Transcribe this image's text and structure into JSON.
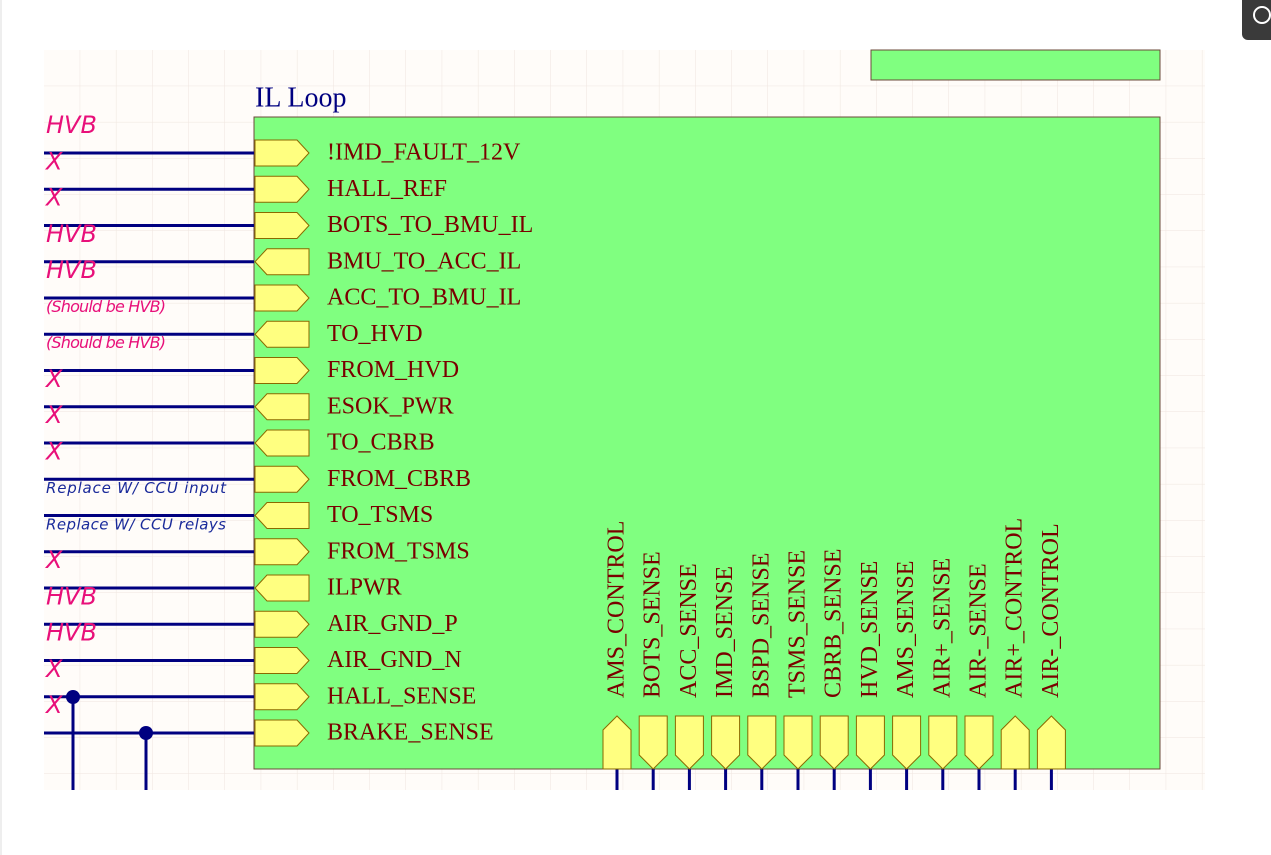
{
  "sheet": {
    "title": "IL Loop",
    "left_ports": [
      {
        "label": "!IMD_FAULT_12V",
        "direction": "right"
      },
      {
        "label": "HALL_REF",
        "direction": "right"
      },
      {
        "label": "BOTS_TO_BMU_IL",
        "direction": "right"
      },
      {
        "label": "BMU_TO_ACC_IL",
        "direction": "left"
      },
      {
        "label": "ACC_TO_BMU_IL",
        "direction": "right"
      },
      {
        "label": "TO_HVD",
        "direction": "left"
      },
      {
        "label": "FROM_HVD",
        "direction": "right"
      },
      {
        "label": "ESOK_PWR",
        "direction": "left"
      },
      {
        "label": "TO_CBRB",
        "direction": "left"
      },
      {
        "label": "FROM_CBRB",
        "direction": "right"
      },
      {
        "label": "TO_TSMS",
        "direction": "left"
      },
      {
        "label": "FROM_TSMS",
        "direction": "right"
      },
      {
        "label": "ILPWR",
        "direction": "left"
      },
      {
        "label": "AIR_GND_P",
        "direction": "right"
      },
      {
        "label": "AIR_GND_N",
        "direction": "right"
      },
      {
        "label": "HALL_SENSE",
        "direction": "right"
      },
      {
        "label": "BRAKE_SENSE",
        "direction": "right"
      }
    ],
    "bottom_ports": [
      {
        "label": "AMS_CONTROL",
        "direction": "up"
      },
      {
        "label": "BOTS_SENSE",
        "direction": "down"
      },
      {
        "label": "ACC_SENSE",
        "direction": "down"
      },
      {
        "label": "IMD_SENSE",
        "direction": "down"
      },
      {
        "label": "BSPD_SENSE",
        "direction": "down"
      },
      {
        "label": "TSMS_SENSE",
        "direction": "down"
      },
      {
        "label": "CBRB_SENSE",
        "direction": "down"
      },
      {
        "label": "HVD_SENSE",
        "direction": "down"
      },
      {
        "label": "AMS_SENSE",
        "direction": "down"
      },
      {
        "label": "AIR+_SENSE",
        "direction": "down"
      },
      {
        "label": "AIR-_SENSE",
        "direction": "down"
      },
      {
        "label": "AIR+_CONTROL",
        "direction": "up"
      },
      {
        "label": "AIR-_CONTROL",
        "direction": "up"
      }
    ]
  },
  "annotations": [
    {
      "text": "HVB",
      "color": "#e8107a"
    },
    {
      "text": "X",
      "color": "#e8107a"
    },
    {
      "text": "X",
      "color": "#e8107a"
    },
    {
      "text": "HVB",
      "color": "#e8107a"
    },
    {
      "text": "HVB",
      "color": "#e8107a"
    },
    {
      "text": "(Should be HVB)",
      "color": "#e8107a"
    },
    {
      "text": "(Should be HVB)",
      "color": "#e8107a"
    },
    {
      "text": "X",
      "color": "#e8107a"
    },
    {
      "text": "X",
      "color": "#e8107a"
    },
    {
      "text": "X",
      "color": "#e8107a"
    },
    {
      "text": "Replace W/ CCU input",
      "color": "#1a2a9a"
    },
    {
      "text": "Replace W/ CCU relays",
      "color": "#1a2a9a"
    },
    {
      "text": "X",
      "color": "#e8107a"
    },
    {
      "text": "HVB",
      "color": "#e8107a"
    },
    {
      "text": "HVB",
      "color": "#e8107a"
    },
    {
      "text": "X",
      "color": "#e8107a"
    },
    {
      "text": "X",
      "color": "#e8107a"
    }
  ]
}
